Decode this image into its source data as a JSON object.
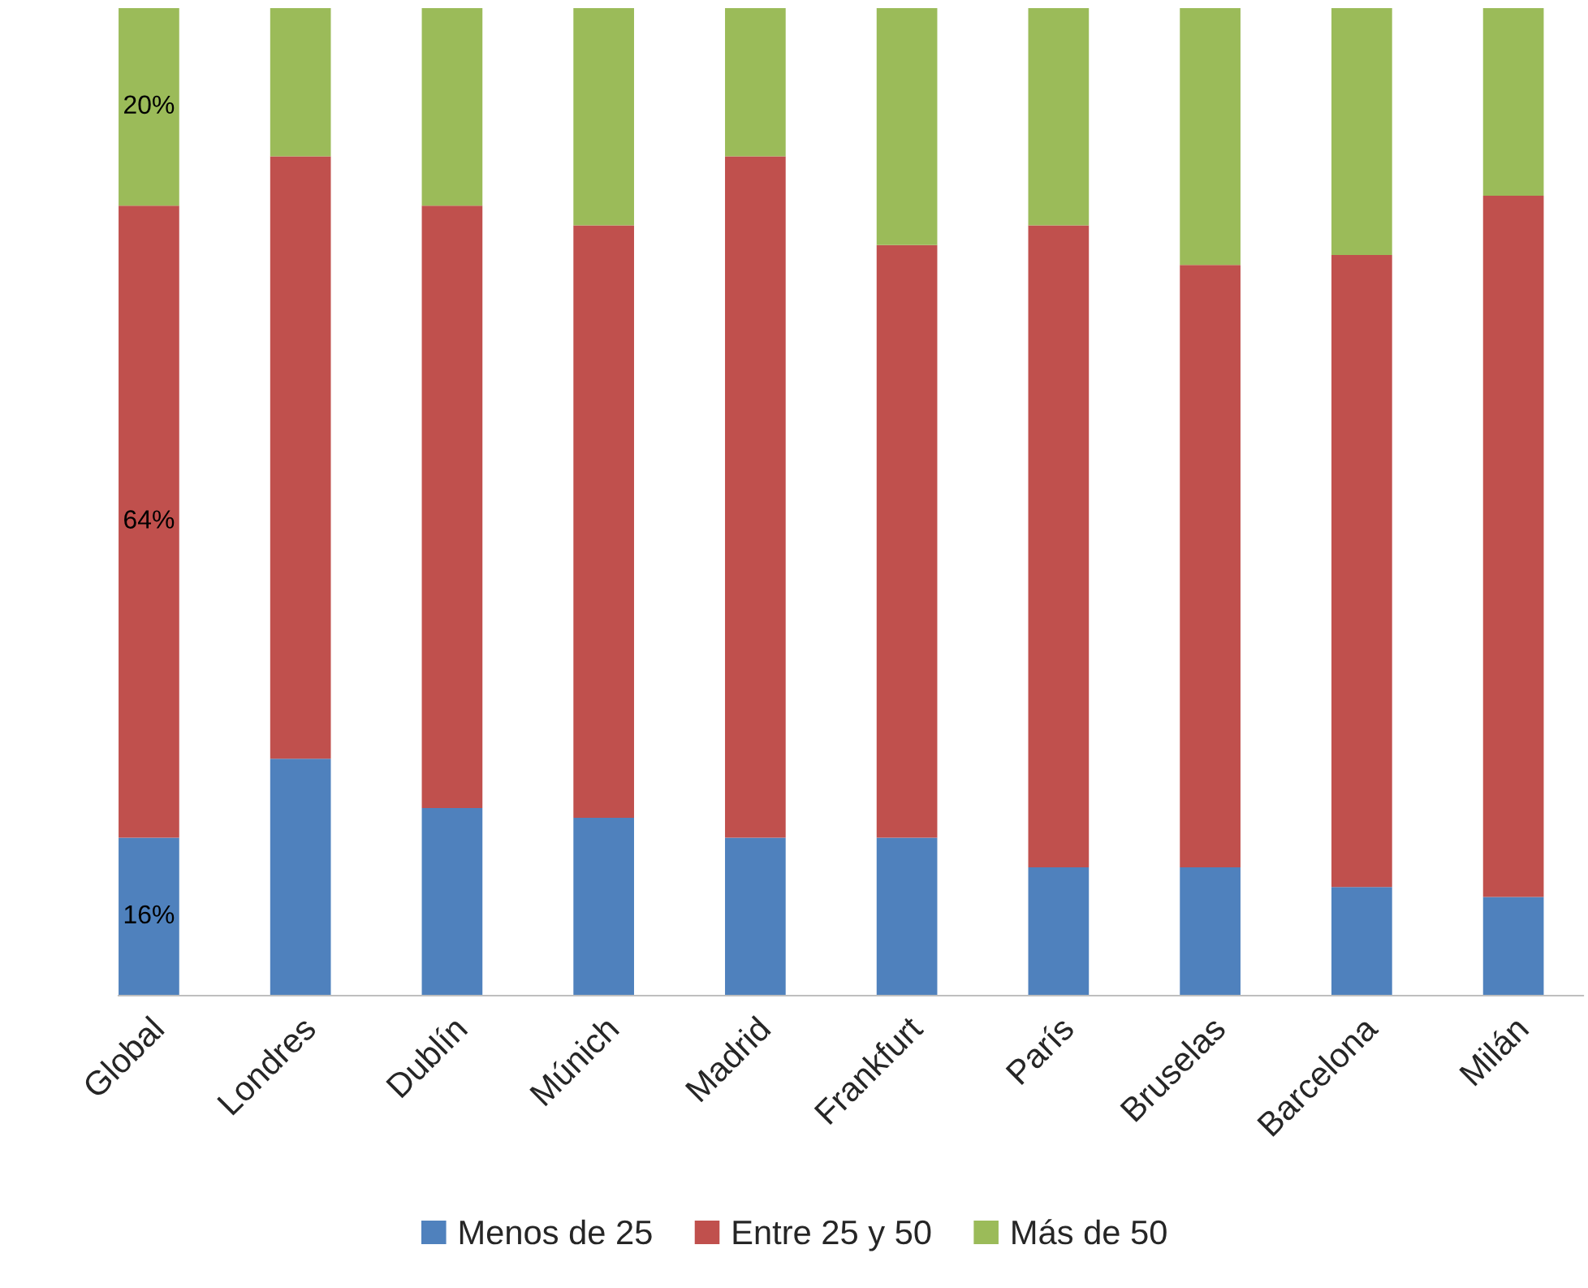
{
  "chart_data": {
    "type": "bar",
    "stacked": true,
    "categories": [
      "Global",
      "Londres",
      "Dublín",
      "Múnich",
      "Madrid",
      "Frankfurt",
      "París",
      "Bruselas",
      "Barcelona",
      "Milán"
    ],
    "ylim": [
      0,
      100
    ],
    "series": [
      {
        "name": "Menos de 25",
        "color": "#4f81bd",
        "values": [
          16,
          24,
          19,
          18,
          16,
          16,
          13,
          13,
          11,
          10
        ],
        "value_labels": [
          "16%",
          null,
          null,
          null,
          null,
          null,
          null,
          null,
          null,
          null
        ]
      },
      {
        "name": "Entre 25 y 50",
        "color": "#c0504d",
        "values": [
          64,
          61,
          61,
          60,
          69,
          60,
          65,
          61,
          64,
          71
        ],
        "value_labels": [
          "64%",
          null,
          null,
          null,
          null,
          null,
          null,
          null,
          null,
          null
        ]
      },
      {
        "name": "Más de 50",
        "color": "#9bbb59",
        "values": [
          20,
          15,
          20,
          22,
          15,
          24,
          22,
          26,
          25,
          19
        ],
        "value_labels": [
          "20%",
          null,
          null,
          null,
          null,
          null,
          null,
          null,
          null,
          null
        ]
      }
    ],
    "legend": "bottom",
    "grid": false
  }
}
